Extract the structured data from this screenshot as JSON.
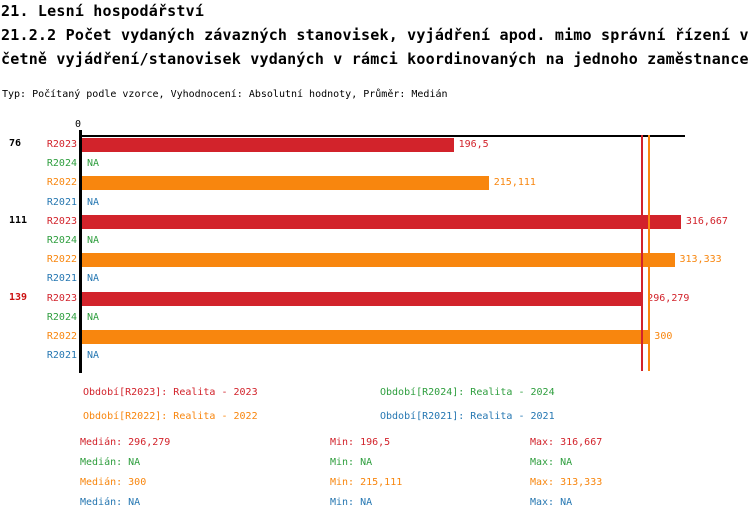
{
  "title": {
    "line1": "21. Lesní hospodářství",
    "line2": "21.2.2 Počet vydaných závazných stanovisek, vyjádření apod. mimo správní řízení v",
    "line3": "četně vyjádření/stanovisek vydaných v rámci koordinovaných na jednoho zaměstnance",
    "subtitle": "Typ: Počítaný podle vzorce, Vyhodnocení: Absolutní hodnoty, Průměr: Medián"
  },
  "colors": {
    "series": {
      "R2023": "#d2232b",
      "R2024": "#2e9e3e",
      "R2022": "#f8860e",
      "R2021": "#2577b2"
    },
    "axis": "#000000",
    "group_label": "#000000",
    "group_label_highlight": "#cc1111"
  },
  "chart_data": {
    "type": "bar",
    "orientation": "horizontal",
    "title": "21.2.2 Počet vydaných závazných stanovisek, vyjádření apod. mimo správní řízení včetně vyjádření/stanovisek vydaných v rámci koordinovaných na jednoho zaměstnance",
    "subtitle": "Typ: Počítaný podle vzorce, Vyhodnocení: Absolutní hodnoty, Průměr: Medián",
    "xlim": [
      0,
      319
    ],
    "axis_zero_label": "0",
    "na_label": "NA",
    "series_order": [
      "R2023",
      "R2024",
      "R2022",
      "R2021"
    ],
    "groups": [
      {
        "label": "76",
        "highlight": false,
        "values": {
          "R2023": 196.5,
          "R2024": null,
          "R2022": 215.111,
          "R2021": null
        },
        "display": {
          "R2023": "196,5",
          "R2024": "NA",
          "R2022": "215,111",
          "R2021": "NA"
        }
      },
      {
        "label": "111",
        "highlight": false,
        "values": {
          "R2023": 316.667,
          "R2024": null,
          "R2022": 313.333,
          "R2021": null
        },
        "display": {
          "R2023": "316,667",
          "R2024": "NA",
          "R2022": "313,333",
          "R2021": "NA"
        }
      },
      {
        "label": "139",
        "highlight": true,
        "values": {
          "R2023": 296.279,
          "R2024": null,
          "R2022": 300,
          "R2021": null
        },
        "display": {
          "R2023": "296,279",
          "R2024": "NA",
          "R2022": "300",
          "R2021": "NA"
        }
      }
    ],
    "median_lines": [
      {
        "series": "R2023",
        "value": 296.279
      },
      {
        "series": "R2022",
        "value": 300
      }
    ]
  },
  "legend": {
    "items": [
      {
        "series": "R2023",
        "text": "Období[R2023]: Realita - 2023",
        "col": 0,
        "row": 0
      },
      {
        "series": "R2024",
        "text": "Období[R2024]: Realita - 2024",
        "col": 1,
        "row": 0
      },
      {
        "series": "R2022",
        "text": "Období[R2022]: Realita - 2022",
        "col": 0,
        "row": 1
      },
      {
        "series": "R2021",
        "text": "Období[R2021]: Realita - 2021",
        "col": 1,
        "row": 1
      }
    ]
  },
  "stats": {
    "labels": {
      "median": "Medián:",
      "min": "Min:",
      "max": "Max:"
    },
    "rows": [
      {
        "series": "R2023",
        "median": "296,279",
        "min": "196,5",
        "max": "316,667"
      },
      {
        "series": "R2024",
        "median": "NA",
        "min": "NA",
        "max": "NA"
      },
      {
        "series": "R2022",
        "median": "300",
        "min": "215,111",
        "max": "313,333"
      },
      {
        "series": "R2021",
        "median": "NA",
        "min": "NA",
        "max": "NA"
      }
    ]
  }
}
